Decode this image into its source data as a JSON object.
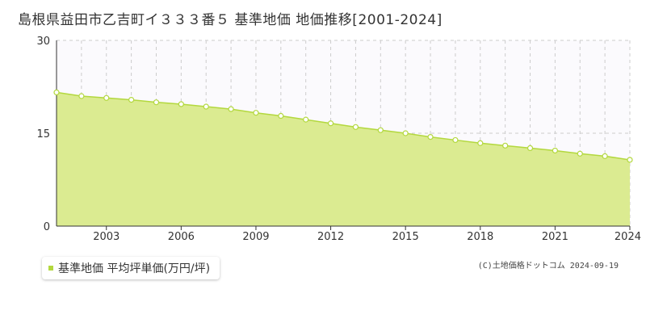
{
  "title": "島根県益田市乙吉町イ３３３番５ 基準地価 地価推移[2001-2024]",
  "legend": {
    "label": "基準地価 平均坪単価(万円/坪)",
    "color": "#b3d83e"
  },
  "copyright": "(C)土地価格ドットコム 2024-09-19",
  "chart_data": {
    "type": "area",
    "x": [
      2001,
      2002,
      2003,
      2004,
      2005,
      2006,
      2007,
      2008,
      2009,
      2010,
      2011,
      2012,
      2013,
      2014,
      2015,
      2016,
      2017,
      2018,
      2019,
      2020,
      2021,
      2022,
      2023,
      2024
    ],
    "series": [
      {
        "name": "基準地価 平均坪単価(万円/坪)",
        "values": [
          21.6,
          21.0,
          20.7,
          20.4,
          20.0,
          19.7,
          19.3,
          18.9,
          18.3,
          17.8,
          17.2,
          16.6,
          16.0,
          15.5,
          15.0,
          14.4,
          13.9,
          13.4,
          13.0,
          12.6,
          12.2,
          11.7,
          11.3,
          10.7
        ]
      }
    ],
    "xlim": [
      2001,
      2024
    ],
    "ylim": [
      0,
      30
    ],
    "yticks": [
      0,
      15,
      30
    ],
    "xticks": [
      2003,
      2006,
      2009,
      2012,
      2015,
      2018,
      2021,
      2024
    ],
    "grid": true,
    "fill_color": "#dbeb91",
    "line_color": "#b3d83e",
    "background_upper": "#fbfafd",
    "legend_position": "bottom-left"
  }
}
